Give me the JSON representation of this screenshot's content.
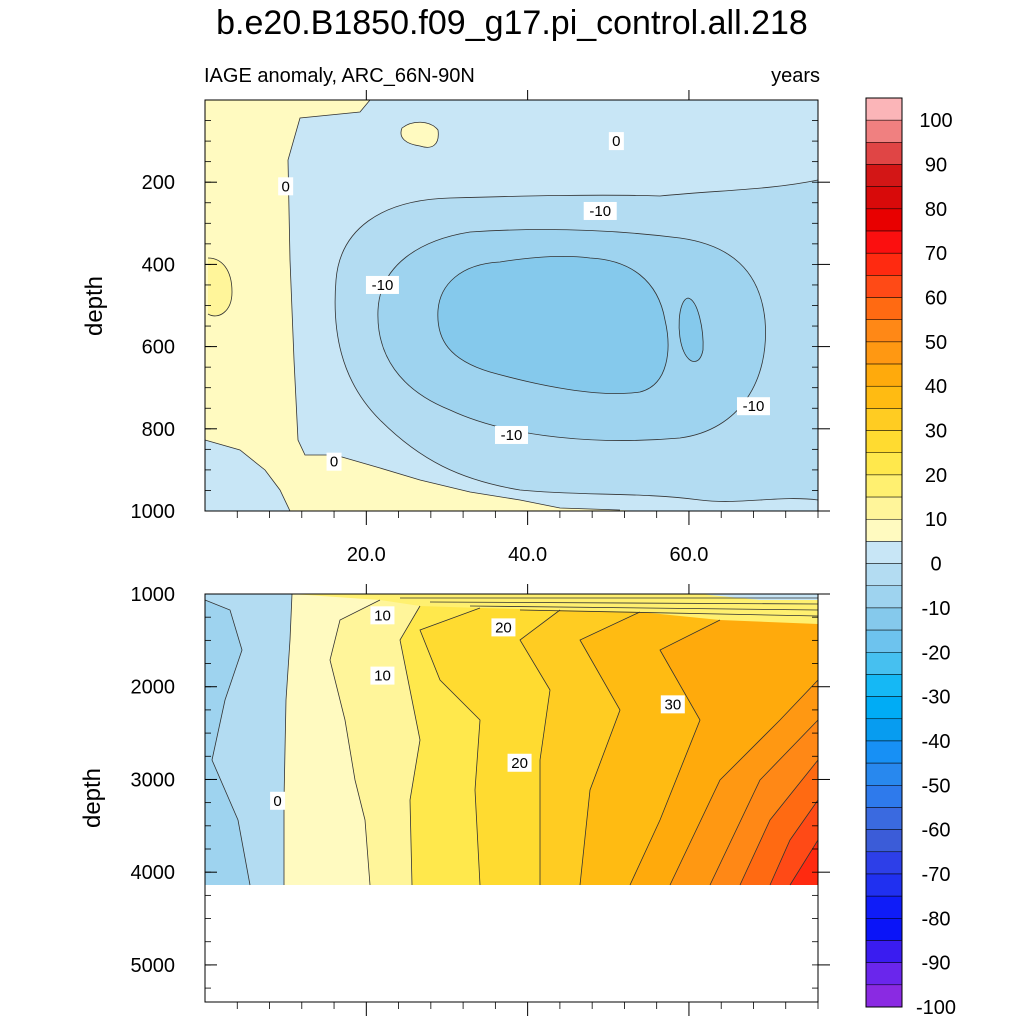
{
  "title": "b.e20.B1850.f09_g17.pi_control.all.218",
  "subtitle_left": "IAGE anomaly, ARC_66N-90N",
  "subtitle_right": "years",
  "colorbar": {
    "labels": [
      "100",
      "90",
      "80",
      "70",
      "60",
      "50",
      "40",
      "30",
      "20",
      "10",
      "0",
      "-10",
      "-20",
      "-30",
      "-40",
      "-50",
      "-60",
      "-70",
      "-80",
      "-90",
      "-100"
    ],
    "colors": [
      "#fbb5b8",
      "#f08080",
      "#e04545",
      "#d31616",
      "#d80a0a",
      "#e80000",
      "#fb0f0f",
      "#ff2a10",
      "#ff4a16",
      "#ff6a12",
      "#ff8816",
      "#ff9812",
      "#ffaa0c",
      "#ffbb12",
      "#ffcc22",
      "#ffdb30",
      "#ffe84c",
      "#fff070",
      "#fff59a",
      "#fffac0",
      "#c8e6f6",
      "#b3dcf2",
      "#9ed3ef",
      "#85c9ec",
      "#6dc3ee",
      "#46c0f0",
      "#15b8f5",
      "#00acf5",
      "#079cf0",
      "#1790f5",
      "#2888ee",
      "#2e7aec",
      "#3a6ae0",
      "#3b5cd8",
      "#2d3fe8",
      "#2030f0",
      "#0f1cf8",
      "#0a14f8",
      "#3a1cf0",
      "#6a26ec",
      "#8a2ae2"
    ]
  },
  "chart_data": [
    {
      "type": "contour",
      "panel": "upper",
      "ylabel": "depth",
      "xlabel": "",
      "xlim": [
        0,
        76
      ],
      "ylim": [
        1000,
        0
      ],
      "x_ticks": [
        20.0,
        40.0,
        60.0
      ],
      "x_tick_labels": [
        "20.0",
        "40.0",
        "60.0"
      ],
      "y_ticks": [
        200,
        400,
        600,
        800,
        1000
      ],
      "contour_interval": 5,
      "contour_labels": [
        {
          "text": "0",
          "x": 10,
          "y": 210
        },
        {
          "text": "0",
          "x": 51,
          "y": 100
        },
        {
          "text": "-10",
          "x": 49,
          "y": 270
        },
        {
          "text": "-10",
          "x": 22,
          "y": 450
        },
        {
          "text": "-10",
          "x": 38,
          "y": 815
        },
        {
          "text": "-10",
          "x": 68,
          "y": 745
        },
        {
          "text": "0",
          "x": 16,
          "y": 880
        }
      ],
      "value_range": [
        -20,
        5
      ]
    },
    {
      "type": "contour",
      "panel": "lower",
      "ylabel": "depth",
      "xlabel": "",
      "xlim": [
        0,
        76
      ],
      "ylim": [
        5400,
        1000
      ],
      "x_ticks": [
        20.0,
        40.0,
        60.0
      ],
      "y_ticks": [
        1000,
        2000,
        3000,
        4000,
        5000
      ],
      "data_bottom_depth": 4120,
      "contour_interval": 5,
      "contour_labels": [
        {
          "text": "10",
          "x": 22,
          "y": 1230
        },
        {
          "text": "20",
          "x": 37,
          "y": 1360
        },
        {
          "text": "10",
          "x": 22,
          "y": 1880
        },
        {
          "text": "30",
          "x": 58,
          "y": 2190
        },
        {
          "text": "20",
          "x": 39,
          "y": 2820
        },
        {
          "text": "0",
          "x": 9,
          "y": 3230
        }
      ],
      "value_range": [
        -10,
        65
      ]
    }
  ]
}
